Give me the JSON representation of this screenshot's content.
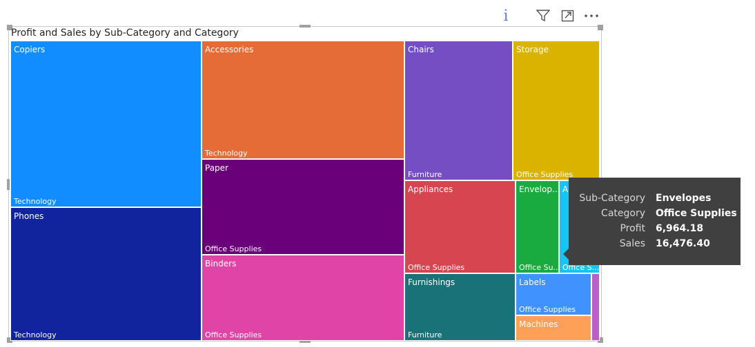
{
  "header": {
    "icons": [
      "info-icon",
      "filter-icon",
      "focus-mode-icon",
      "more-options-icon"
    ],
    "info_glyph": "i"
  },
  "chart_data": {
    "type": "treemap",
    "title": "Profit and Sales by Sub-Category and Category",
    "tiles": [
      {
        "label": "Copiers",
        "category": "Technology",
        "color": "#118DFF"
      },
      {
        "label": "Phones",
        "category": "Technology",
        "color": "#12239E"
      },
      {
        "label": "Accessories",
        "category": "Technology",
        "color": "#E66C37"
      },
      {
        "label": "Paper",
        "category": "Office Supplies",
        "color": "#6B007B"
      },
      {
        "label": "Binders",
        "category": "Office Supplies",
        "color": "#E044A7"
      },
      {
        "label": "Chairs",
        "category": "Furniture",
        "color": "#744EC2"
      },
      {
        "label": "Storage",
        "category": "Office Supplies",
        "color": "#D9B300"
      },
      {
        "label": "Appliances",
        "category": "Office Supplies",
        "color": "#D64550"
      },
      {
        "label": "Envelop...",
        "category": "Office Su...",
        "color": "#1AAB40"
      },
      {
        "label": "A",
        "category": "Office S...",
        "color": "#15C6F4"
      },
      {
        "label": "Furnishings",
        "category": "Furniture",
        "color": "#197278"
      },
      {
        "label": "Labels",
        "category": "Office Supplies",
        "color": "#4092FF"
      },
      {
        "label": "Machines",
        "category": "",
        "color": "#FFA058"
      },
      {
        "label": "",
        "category": "",
        "color": "#BE5DC9"
      }
    ],
    "tooltip": {
      "rows": [
        {
          "key": "Sub-Category",
          "value": "Envelopes"
        },
        {
          "key": "Category",
          "value": "Office Supplies"
        },
        {
          "key": "Profit",
          "value": "6,964.18"
        },
        {
          "key": "Sales",
          "value": "16,476.40"
        }
      ]
    }
  }
}
